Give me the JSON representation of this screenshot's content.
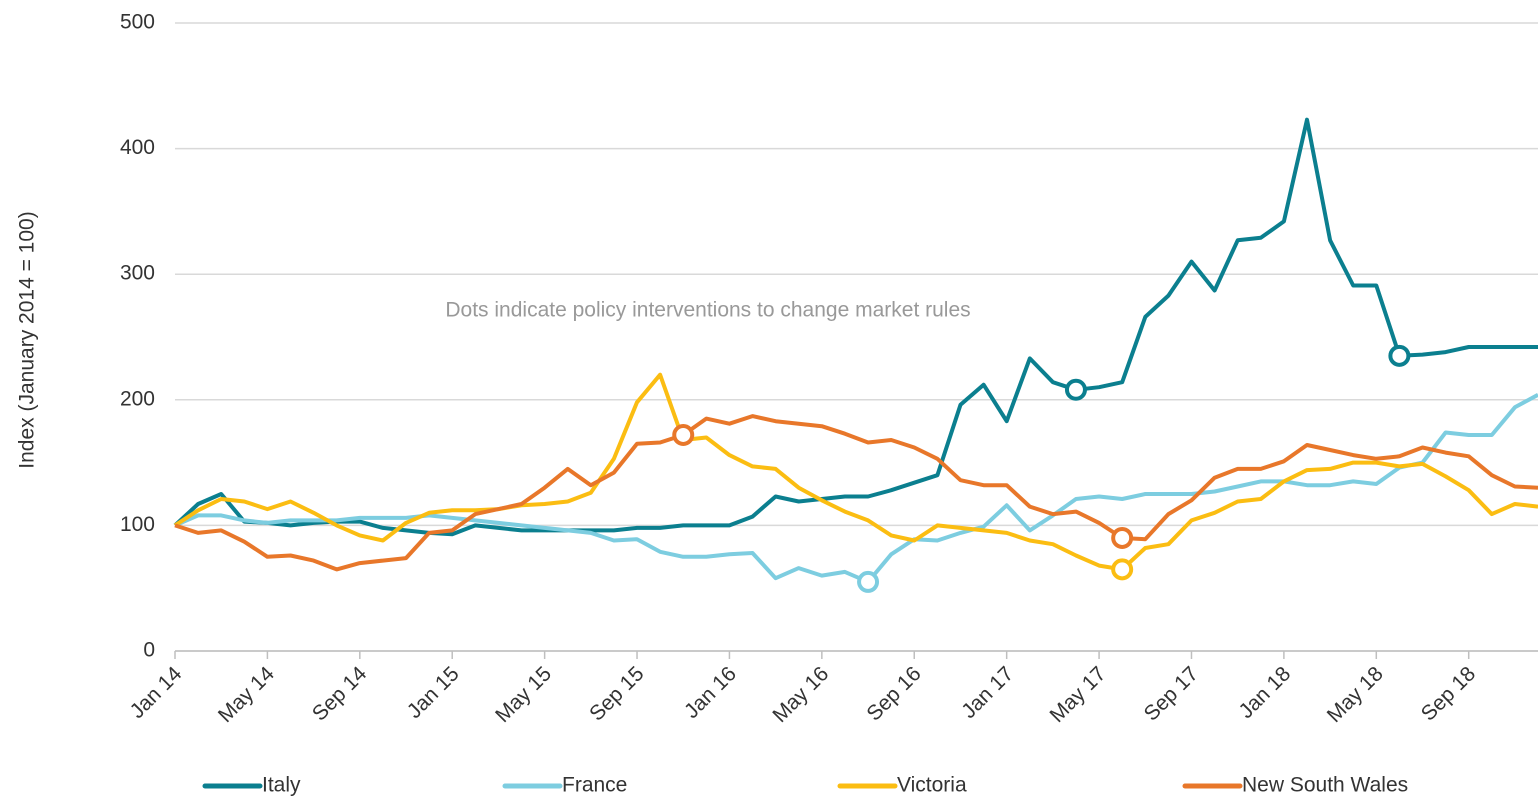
{
  "chart_data": {
    "type": "line",
    "y_label": "Index (January 2014 = 100)",
    "annotation": "Dots indicate policy interventions to change market rules",
    "categories": [
      "Jan 14",
      null,
      null,
      null,
      "May 14",
      null,
      null,
      null,
      "Sep 14",
      null,
      null,
      null,
      "Jan 15",
      null,
      null,
      null,
      "May 15",
      null,
      null,
      null,
      "Sep 15",
      null,
      null,
      null,
      "Jan 16",
      null,
      null,
      null,
      "May 16",
      null,
      null,
      null,
      "Sep 16",
      null,
      null,
      null,
      "Jan 17",
      null,
      null,
      null,
      "May 17",
      null,
      null,
      null,
      "Sep 17",
      null,
      null,
      null,
      "Jan 18",
      null,
      null,
      null,
      "May 18",
      null,
      null,
      null,
      "Sep 18",
      null,
      null,
      null
    ],
    "series": [
      {
        "name": "Italy",
        "color": "#0b7f8f",
        "markers": [
          39,
          53
        ],
        "values": [
          100,
          117,
          125,
          103,
          102,
          100,
          102,
          103,
          103,
          98,
          96,
          94,
          93,
          100,
          98,
          96,
          96,
          96,
          96,
          96,
          98,
          98,
          100,
          100,
          100,
          107,
          123,
          119,
          121,
          123,
          123,
          128,
          134,
          140,
          196,
          212,
          183,
          233,
          214,
          208,
          210,
          214,
          266,
          283,
          310,
          287,
          327,
          329,
          342,
          423,
          327,
          291,
          291,
          235,
          236,
          238,
          242,
          242,
          242,
          242
        ]
      },
      {
        "name": "France",
        "color": "#7dcde0",
        "markers": [
          30
        ],
        "values": [
          100,
          108,
          108,
          104,
          102,
          104,
          104,
          104,
          106,
          106,
          106,
          108,
          106,
          104,
          102,
          100,
          98,
          96,
          94,
          88,
          89,
          79,
          75,
          75,
          77,
          78,
          58,
          66,
          60,
          63,
          55,
          77,
          89,
          88,
          94,
          99,
          116,
          96,
          108,
          121,
          123,
          121,
          125,
          125,
          125,
          127,
          131,
          135,
          135,
          132,
          132,
          135,
          133,
          146,
          150,
          174,
          172,
          172,
          194,
          204
        ]
      },
      {
        "name": "Victoria",
        "color": "#fbbd12",
        "markers": [
          41
        ],
        "values": [
          100,
          112,
          121,
          119,
          113,
          119,
          110,
          100,
          92,
          88,
          102,
          110,
          112,
          112,
          113,
          116,
          117,
          119,
          126,
          153,
          198,
          220,
          168,
          170,
          156,
          147,
          145,
          130,
          120,
          111,
          104,
          92,
          88,
          100,
          98,
          96,
          94,
          88,
          85,
          76,
          68,
          65,
          82,
          85,
          104,
          110,
          119,
          121,
          135,
          144,
          145,
          150,
          150,
          147,
          149,
          139,
          128,
          109,
          117,
          115
        ]
      },
      {
        "name": "New South Wales",
        "color": "#e8772a",
        "markers": [
          22,
          41
        ],
        "values": [
          100,
          94,
          96,
          87,
          75,
          76,
          72,
          65,
          70,
          72,
          74,
          94,
          96,
          109,
          113,
          117,
          130,
          145,
          132,
          142,
          165,
          166,
          172,
          185,
          181,
          187,
          183,
          181,
          179,
          173,
          166,
          168,
          162,
          153,
          136,
          132,
          132,
          115,
          109,
          111,
          102,
          90,
          89,
          109,
          120,
          138,
          145,
          145,
          151,
          164,
          160,
          156,
          153,
          155,
          162,
          158,
          155,
          140,
          131,
          130
        ]
      }
    ],
    "ylim": [
      0,
      500
    ],
    "yticks": [
      0,
      100,
      200,
      300,
      400,
      500
    ],
    "grid": true
  }
}
